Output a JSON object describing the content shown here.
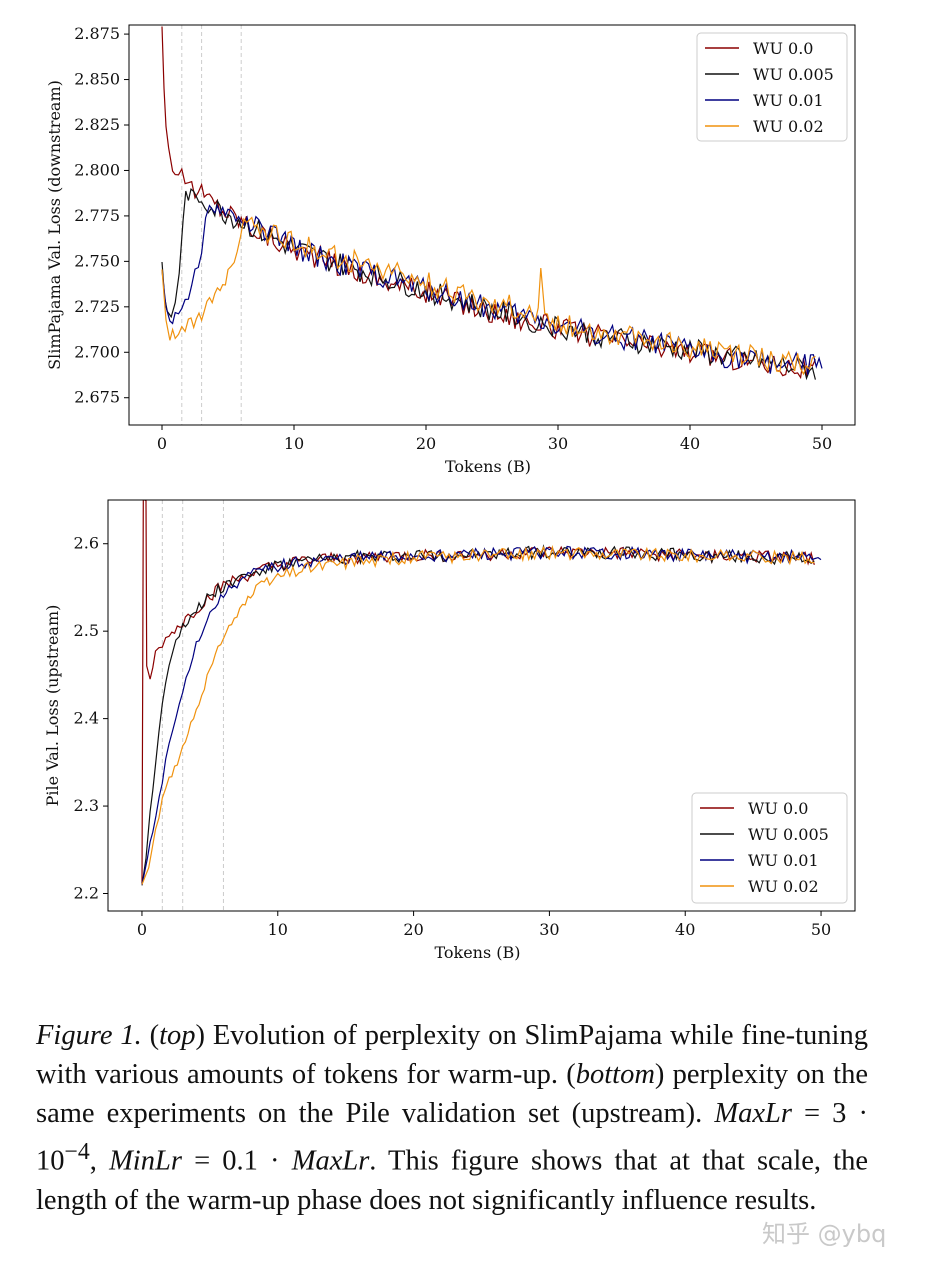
{
  "chart_data": [
    {
      "type": "line",
      "id": "top",
      "xlabel": "Tokens (B)",
      "ylabel": "SlimPajama Val. Loss (downstream)",
      "xlim": [
        -2.5,
        52.5
      ],
      "ylim": [
        2.66,
        2.88
      ],
      "xticks": [
        0,
        10,
        20,
        30,
        40,
        50
      ],
      "yticks": [
        2.675,
        2.7,
        2.725,
        2.75,
        2.775,
        2.8,
        2.825,
        2.85,
        2.875
      ],
      "ytick_labels": [
        "2.675",
        "2.700",
        "2.725",
        "2.750",
        "2.775",
        "2.800",
        "2.825",
        "2.850",
        "2.875"
      ],
      "warmup_markers": [
        1.5,
        3,
        6
      ],
      "legend_position": "top-right",
      "series": [
        {
          "name": "WU 0.0",
          "color": "#8b0000",
          "points": [
            [
              0.0,
              2.88
            ],
            [
              0.15,
              2.845
            ],
            [
              0.3,
              2.825
            ],
            [
              0.5,
              2.812
            ],
            [
              0.8,
              2.803
            ],
            [
              1.0,
              2.799
            ],
            [
              1.5,
              2.797
            ],
            [
              2.0,
              2.793
            ],
            [
              2.5,
              2.79
            ],
            [
              3.0,
              2.787
            ],
            [
              4,
              2.782
            ],
            [
              5,
              2.777
            ],
            [
              6,
              2.773
            ],
            [
              7,
              2.768
            ],
            [
              8,
              2.764
            ],
            [
              10,
              2.757
            ],
            [
              12,
              2.752
            ],
            [
              15,
              2.744
            ],
            [
              18,
              2.737
            ],
            [
              20,
              2.733
            ],
            [
              25,
              2.722
            ],
            [
              30,
              2.713
            ],
            [
              35,
              2.706
            ],
            [
              40,
              2.7
            ],
            [
              45,
              2.695
            ],
            [
              49.5,
              2.69
            ]
          ]
        },
        {
          "name": "WU 0.005",
          "color": "#111111",
          "points": [
            [
              0.0,
              2.75
            ],
            [
              0.2,
              2.73
            ],
            [
              0.4,
              2.722
            ],
            [
              0.7,
              2.72
            ],
            [
              1.0,
              2.728
            ],
            [
              1.3,
              2.745
            ],
            [
              1.6,
              2.77
            ],
            [
              1.8,
              2.787
            ],
            [
              2.2,
              2.786
            ],
            [
              3.0,
              2.784
            ],
            [
              3.5,
              2.78
            ],
            [
              4,
              2.779
            ],
            [
              5,
              2.776
            ],
            [
              6,
              2.772
            ],
            [
              8,
              2.764
            ],
            [
              10,
              2.757
            ],
            [
              12,
              2.752
            ],
            [
              15,
              2.745
            ],
            [
              20,
              2.734
            ],
            [
              25,
              2.723
            ],
            [
              30,
              2.714
            ],
            [
              35,
              2.707
            ],
            [
              40,
              2.701
            ],
            [
              45,
              2.695
            ],
            [
              49.5,
              2.69
            ]
          ]
        },
        {
          "name": "WU 0.01",
          "color": "#000080",
          "points": [
            [
              0.0,
              2.745
            ],
            [
              0.3,
              2.725
            ],
            [
              0.6,
              2.718
            ],
            [
              1.0,
              2.72
            ],
            [
              1.5,
              2.726
            ],
            [
              2.0,
              2.733
            ],
            [
              2.5,
              2.742
            ],
            [
              3.0,
              2.758
            ],
            [
              3.3,
              2.772
            ],
            [
              3.6,
              2.778
            ],
            [
              4,
              2.779
            ],
            [
              5,
              2.777
            ],
            [
              6,
              2.772
            ],
            [
              8,
              2.765
            ],
            [
              10,
              2.758
            ],
            [
              12,
              2.752
            ],
            [
              15,
              2.745
            ],
            [
              20,
              2.735
            ],
            [
              25,
              2.724
            ],
            [
              30,
              2.715
            ],
            [
              35,
              2.708
            ],
            [
              40,
              2.701
            ],
            [
              45,
              2.695
            ],
            [
              50,
              2.692
            ]
          ]
        },
        {
          "name": "WU 0.02",
          "color": "#f0920f",
          "points": [
            [
              0.0,
              2.745
            ],
            [
              0.3,
              2.718
            ],
            [
              0.6,
              2.71
            ],
            [
              1.0,
              2.711
            ],
            [
              1.5,
              2.713
            ],
            [
              2.0,
              2.715
            ],
            [
              3.0,
              2.72
            ],
            [
              4.0,
              2.731
            ],
            [
              5.0,
              2.743
            ],
            [
              5.7,
              2.756
            ],
            [
              6.2,
              2.772
            ],
            [
              7,
              2.771
            ],
            [
              8,
              2.766
            ],
            [
              10,
              2.76
            ],
            [
              12,
              2.755
            ],
            [
              15,
              2.749
            ],
            [
              20,
              2.738
            ],
            [
              25,
              2.727
            ],
            [
              28.5,
              2.722
            ],
            [
              28.7,
              2.742
            ],
            [
              29,
              2.719
            ],
            [
              30,
              2.716
            ],
            [
              35,
              2.709
            ],
            [
              40,
              2.703
            ],
            [
              45,
              2.697
            ],
            [
              49.5,
              2.692
            ]
          ]
        }
      ]
    },
    {
      "type": "line",
      "id": "bottom",
      "xlabel": "Tokens (B)",
      "ylabel": "Pile Val. Loss (upstream)",
      "xlim": [
        -2.5,
        52.5
      ],
      "ylim": [
        2.18,
        2.65
      ],
      "xticks": [
        0,
        10,
        20,
        30,
        40,
        50
      ],
      "yticks": [
        2.2,
        2.3,
        2.4,
        2.5,
        2.6
      ],
      "ytick_labels": [
        "2.2",
        "2.3",
        "2.4",
        "2.5",
        "2.6"
      ],
      "warmup_markers": [
        1.5,
        3,
        6
      ],
      "legend_position": "bottom-right",
      "series": [
        {
          "name": "WU 0.0",
          "color": "#8b0000",
          "points": [
            [
              0.0,
              2.21
            ],
            [
              0.1,
              2.65
            ],
            [
              0.3,
              2.65
            ],
            [
              0.35,
              2.46
            ],
            [
              0.6,
              2.442
            ],
            [
              1.0,
              2.475
            ],
            [
              1.5,
              2.485
            ],
            [
              2.0,
              2.495
            ],
            [
              3.0,
              2.51
            ],
            [
              4.0,
              2.525
            ],
            [
              5,
              2.54
            ],
            [
              6,
              2.552
            ],
            [
              8,
              2.565
            ],
            [
              10,
              2.575
            ],
            [
              12,
              2.58
            ],
            [
              15,
              2.584
            ],
            [
              20,
              2.586
            ],
            [
              25,
              2.588
            ],
            [
              30,
              2.59
            ],
            [
              35,
              2.589
            ],
            [
              40,
              2.587
            ],
            [
              45,
              2.585
            ],
            [
              49.5,
              2.583
            ]
          ]
        },
        {
          "name": "WU 0.005",
          "color": "#111111",
          "points": [
            [
              0.0,
              2.21
            ],
            [
              0.3,
              2.24
            ],
            [
              0.6,
              2.29
            ],
            [
              1.0,
              2.35
            ],
            [
              1.5,
              2.42
            ],
            [
              2.0,
              2.465
            ],
            [
              2.5,
              2.49
            ],
            [
              3.0,
              2.505
            ],
            [
              4,
              2.525
            ],
            [
              5,
              2.542
            ],
            [
              6,
              2.553
            ],
            [
              8,
              2.566
            ],
            [
              10,
              2.575
            ],
            [
              12,
              2.58
            ],
            [
              15,
              2.584
            ],
            [
              20,
              2.587
            ],
            [
              25,
              2.588
            ],
            [
              30,
              2.59
            ],
            [
              35,
              2.589
            ],
            [
              40,
              2.587
            ],
            [
              45,
              2.585
            ],
            [
              49.5,
              2.583
            ]
          ]
        },
        {
          "name": "WU 0.01",
          "color": "#000080",
          "points": [
            [
              0.0,
              2.21
            ],
            [
              0.4,
              2.24
            ],
            [
              0.8,
              2.27
            ],
            [
              1.5,
              2.33
            ],
            [
              2.0,
              2.37
            ],
            [
              2.5,
              2.4
            ],
            [
              3.0,
              2.43
            ],
            [
              3.5,
              2.46
            ],
            [
              4,
              2.485
            ],
            [
              5,
              2.52
            ],
            [
              6,
              2.542
            ],
            [
              7,
              2.556
            ],
            [
              8,
              2.564
            ],
            [
              10,
              2.574
            ],
            [
              12,
              2.579
            ],
            [
              15,
              2.583
            ],
            [
              20,
              2.586
            ],
            [
              25,
              2.588
            ],
            [
              30,
              2.59
            ],
            [
              35,
              2.589
            ],
            [
              40,
              2.587
            ],
            [
              45,
              2.585
            ],
            [
              50,
              2.585
            ]
          ]
        },
        {
          "name": "WU 0.02",
          "color": "#f0920f",
          "points": [
            [
              0.0,
              2.21
            ],
            [
              0.5,
              2.23
            ],
            [
              1.0,
              2.27
            ],
            [
              1.5,
              2.305
            ],
            [
              2.0,
              2.33
            ],
            [
              3.0,
              2.365
            ],
            [
              4.0,
              2.41
            ],
            [
              5.0,
              2.455
            ],
            [
              6.0,
              2.495
            ],
            [
              7,
              2.52
            ],
            [
              8,
              2.54
            ],
            [
              9,
              2.553
            ],
            [
              10,
              2.562
            ],
            [
              12,
              2.572
            ],
            [
              15,
              2.579
            ],
            [
              20,
              2.584
            ],
            [
              25,
              2.587
            ],
            [
              30,
              2.589
            ],
            [
              35,
              2.589
            ],
            [
              40,
              2.587
            ],
            [
              45,
              2.585
            ],
            [
              49.5,
              2.584
            ]
          ]
        }
      ]
    }
  ],
  "caption": {
    "figure_label": "Figure 1.",
    "top_tag": "top",
    "part1": " Evolution of perplexity on SlimPajama while fine-tuning with various amounts of tokens for warm-up. (",
    "bottom_tag": "bottom",
    "part2": ") perplexity on the same experiments on the Pile validation set (upstream). ",
    "maxlr_label": "MaxLr",
    "maxlr_expr": " = 3 · 10",
    "maxlr_exp": "−4",
    "minlr_sep": ", ",
    "minlr_label": "MinLr",
    "minlr_expr": " = 0.1 · ",
    "minlr_ref": "MaxLr",
    "part3": ". This figure shows that at that scale, the length of the warm-up phase does not significantly influence results."
  },
  "watermark": "知乎 @ybq"
}
